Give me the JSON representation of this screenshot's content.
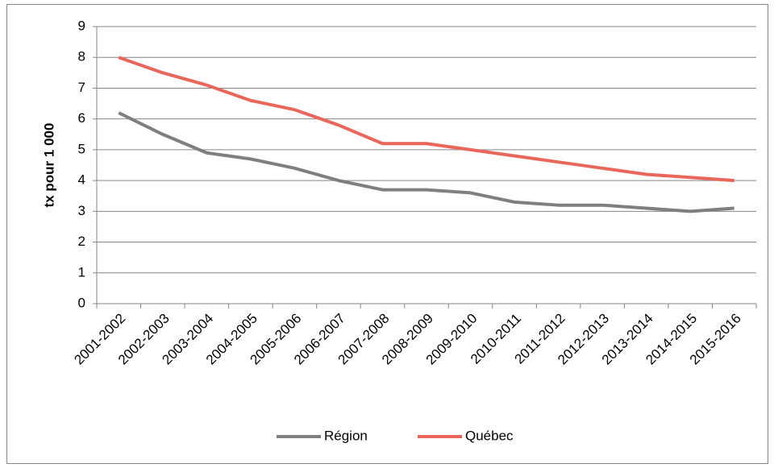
{
  "chart_data": {
    "type": "line",
    "y_label": "tx pour 1 000",
    "categories": [
      "2001-2002",
      "2002-2003",
      "2003-2004",
      "2004-2005",
      "2005-2006",
      "2006-2007",
      "2007-2008",
      "2008-2009",
      "2009-2010",
      "2010-2011",
      "2011-2012",
      "2012-2013",
      "2013-2014",
      "2014-2015",
      "2015-2016"
    ],
    "series": [
      {
        "name": "Région",
        "color": "#7f7f7f",
        "values": [
          6.2,
          5.5,
          4.9,
          4.7,
          4.4,
          4.0,
          3.7,
          3.7,
          3.6,
          3.3,
          3.2,
          3.2,
          3.1,
          3.0,
          3.1
        ]
      },
      {
        "name": "Québec",
        "color": "#e8675a",
        "values": [
          8.0,
          7.5,
          7.1,
          6.6,
          6.3,
          5.8,
          5.2,
          5.2,
          5.0,
          4.8,
          4.6,
          4.4,
          4.2,
          4.1,
          4.0
        ]
      }
    ],
    "ylim": [
      0,
      9
    ],
    "yticks": [
      0,
      1,
      2,
      3,
      4,
      5,
      6,
      7,
      8,
      9
    ],
    "grid": true,
    "legend": "bottom"
  }
}
